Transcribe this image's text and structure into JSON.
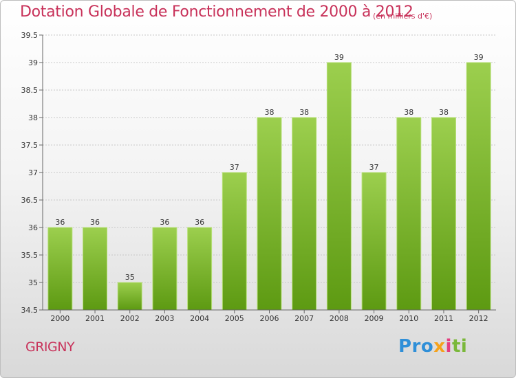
{
  "title": "Dotation Globale de Fonctionnement de 2000 à 2012",
  "subtitle": "(en milliers d'€)",
  "commune": "GRIGNY",
  "logo": {
    "text": "Proxiti",
    "parts": [
      "Pro",
      "x",
      "i",
      "ti"
    ]
  },
  "colors": {
    "title": "#c8325a",
    "bar_top": "#9ccf4e",
    "bar_bottom": "#5d9a12",
    "grid": "#c8c8c8",
    "axis_text": "#333333"
  },
  "chart_data": {
    "type": "bar",
    "title": "Dotation Globale de Fonctionnement de 2000 à 2012",
    "subtitle": "(en milliers d'€)",
    "categories": [
      "2000",
      "2001",
      "2002",
      "2003",
      "2004",
      "2005",
      "2006",
      "2007",
      "2008",
      "2009",
      "2010",
      "2011",
      "2012"
    ],
    "values": [
      36,
      36,
      35,
      36,
      36,
      37,
      38,
      38,
      39,
      37,
      38,
      38,
      39
    ],
    "data_labels": [
      "36",
      "36",
      "35",
      "36",
      "36",
      "37",
      "38",
      "38",
      "39",
      "37",
      "38",
      "38",
      "39"
    ],
    "ylim": [
      34.5,
      39.5
    ],
    "yticks": [
      "34.5",
      "35",
      "35.5",
      "36",
      "36.5",
      "37",
      "37.5",
      "38",
      "38.5",
      "39",
      "39.5"
    ],
    "grid": true,
    "legend": "none"
  }
}
